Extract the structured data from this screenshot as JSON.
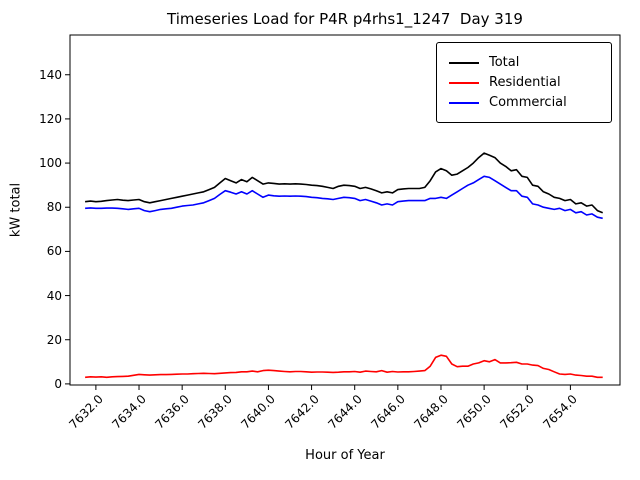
{
  "chart_data": {
    "type": "line",
    "title": "Timeseries Load for P4R p4rhs1_1247  Day 319",
    "xlabel": "Hour of Year",
    "ylabel": "kW total",
    "grid": false,
    "legend_position": "upper right",
    "xlim": [
      7630.8,
      7656.3
    ],
    "ylim": [
      -0.5,
      158
    ],
    "xticks": [
      7632,
      7634,
      7636,
      7638,
      7640,
      7642,
      7644,
      7646,
      7648,
      7650,
      7652,
      7654
    ],
    "xtick_labels": [
      "7632.0",
      "7634.0",
      "7636.0",
      "7638.0",
      "7640.0",
      "7642.0",
      "7644.0",
      "7646.0",
      "7648.0",
      "7650.0",
      "7652.0",
      "7654.0"
    ],
    "yticks": [
      0,
      20,
      40,
      60,
      80,
      100,
      120,
      140
    ],
    "ytick_labels": [
      "0",
      "20",
      "40",
      "60",
      "80",
      "100",
      "120",
      "140"
    ],
    "x_start": 7631.5,
    "x_step": 0.25,
    "series": [
      {
        "name": "Total",
        "color": "#000000",
        "values": [
          82.5,
          82.8,
          82.5,
          82.7,
          83.0,
          83.3,
          83.5,
          83.2,
          83.0,
          83.3,
          83.5,
          82.5,
          82.0,
          82.5,
          83.0,
          83.5,
          84.0,
          84.5,
          85.0,
          85.5,
          86.0,
          86.5,
          87.0,
          88.0,
          89.0,
          91.0,
          93.0,
          92.0,
          91.0,
          92.5,
          91.5,
          93.5,
          92.0,
          90.5,
          91.0,
          90.8,
          90.5,
          90.6,
          90.5,
          90.6,
          90.5,
          90.3,
          90.0,
          89.8,
          89.5,
          89.0,
          88.5,
          89.5,
          90.0,
          89.8,
          89.5,
          88.5,
          89.0,
          88.3,
          87.5,
          86.5,
          87.0,
          86.5,
          88.0,
          88.3,
          88.5,
          88.5,
          88.5,
          89.0,
          92.0,
          96.0,
          97.5,
          96.5,
          94.5,
          95.0,
          96.5,
          98.0,
          100.0,
          102.5,
          104.5,
          103.5,
          102.5,
          100.0,
          98.5,
          96.5,
          97.0,
          94.0,
          93.5,
          90.0,
          89.5,
          87.0,
          86.0,
          84.5,
          84.0,
          83.0,
          83.5,
          81.5,
          82.0,
          80.5,
          81.0,
          78.5,
          77.5
        ]
      },
      {
        "name": "Residential",
        "color": "#ff0000",
        "values": [
          3.0,
          3.2,
          3.1,
          3.2,
          3.0,
          3.2,
          3.3,
          3.4,
          3.5,
          3.9,
          4.3,
          4.1,
          4.0,
          4.1,
          4.2,
          4.2,
          4.3,
          4.4,
          4.5,
          4.5,
          4.6,
          4.7,
          4.8,
          4.7,
          4.6,
          4.8,
          5.0,
          5.1,
          5.2,
          5.5,
          5.5,
          5.8,
          5.5,
          6.0,
          6.2,
          6.0,
          5.8,
          5.6,
          5.5,
          5.6,
          5.6,
          5.5,
          5.3,
          5.4,
          5.4,
          5.3,
          5.2,
          5.3,
          5.5,
          5.5,
          5.6,
          5.3,
          5.8,
          5.6,
          5.5,
          6.0,
          5.3,
          5.6,
          5.4,
          5.5,
          5.5,
          5.6,
          5.8,
          6.0,
          8.0,
          12.0,
          13.0,
          12.5,
          9.0,
          7.8,
          8.0,
          8.0,
          9.0,
          9.5,
          10.5,
          10.0,
          11.0,
          9.5,
          9.5,
          9.6,
          9.8,
          9.0,
          9.0,
          8.5,
          8.3,
          7.0,
          6.5,
          5.5,
          4.5,
          4.3,
          4.5,
          4.0,
          3.8,
          3.5,
          3.5,
          3.0,
          3.0
        ]
      },
      {
        "name": "Commercial",
        "color": "#0000ff",
        "values": [
          79.5,
          79.7,
          79.5,
          79.5,
          79.6,
          79.6,
          79.5,
          79.3,
          79.0,
          79.3,
          79.5,
          78.5,
          78.0,
          78.5,
          79.0,
          79.3,
          79.5,
          80.0,
          80.5,
          80.8,
          81.0,
          81.5,
          82.0,
          83.0,
          84.0,
          85.8,
          87.5,
          86.8,
          86.0,
          87.0,
          86.0,
          87.5,
          86.0,
          84.5,
          85.5,
          85.2,
          85.0,
          85.1,
          85.0,
          85.1,
          85.0,
          84.8,
          84.5,
          84.3,
          84.0,
          83.8,
          83.5,
          84.0,
          84.5,
          84.3,
          84.0,
          83.0,
          83.5,
          82.8,
          82.0,
          81.0,
          81.5,
          81.0,
          82.5,
          82.8,
          83.0,
          83.0,
          83.0,
          83.0,
          84.0,
          84.0,
          84.5,
          84.0,
          85.5,
          87.0,
          88.5,
          90.0,
          91.0,
          92.5,
          94.0,
          93.5,
          92.0,
          90.5,
          89.0,
          87.5,
          87.5,
          85.0,
          84.5,
          81.5,
          81.0,
          80.0,
          79.5,
          79.0,
          79.5,
          78.5,
          79.0,
          77.5,
          78.0,
          76.5,
          77.0,
          75.5,
          75.0
        ]
      }
    ]
  }
}
